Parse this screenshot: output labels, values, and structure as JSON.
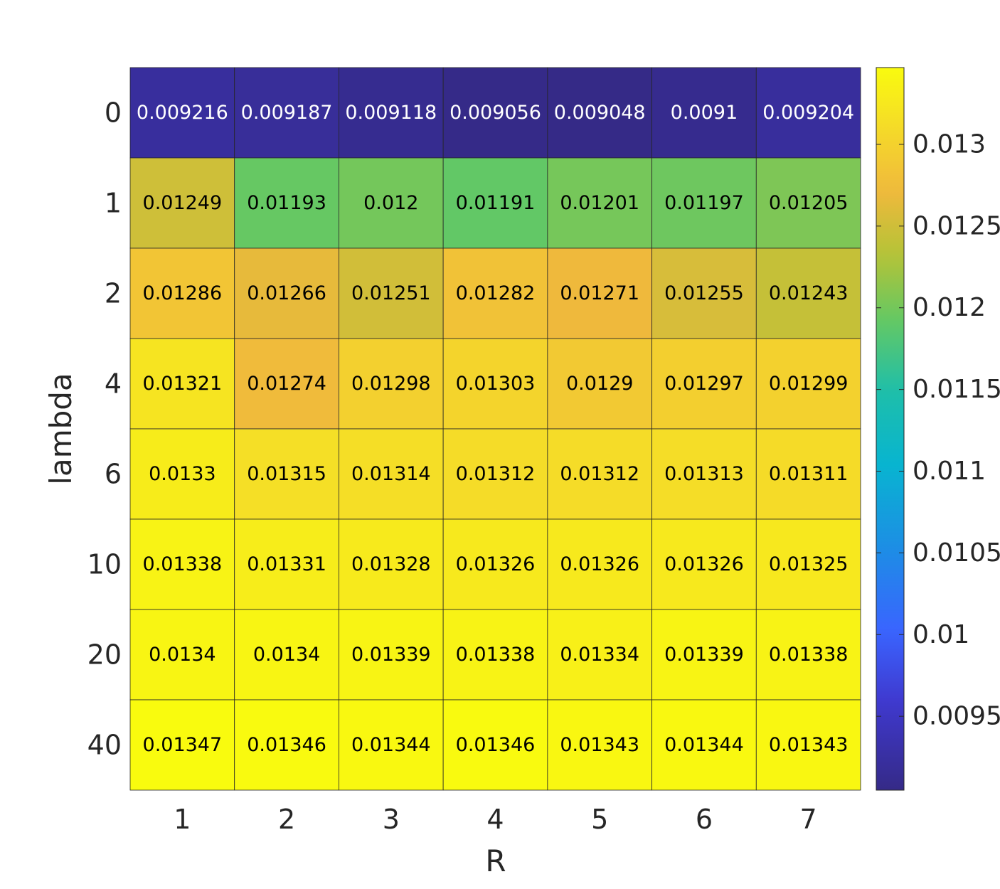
{
  "chart_data": {
    "type": "heatmap",
    "xlabel": "R",
    "ylabel": "lambda",
    "x_categories": [
      "1",
      "2",
      "3",
      "4",
      "5",
      "6",
      "7"
    ],
    "y_categories": [
      "0",
      "1",
      "2",
      "4",
      "6",
      "10",
      "20",
      "40"
    ],
    "cell_labels": [
      [
        "0.009216",
        "0.009187",
        "0.009118",
        "0.009056",
        "0.009048",
        "0.0091",
        "0.009204"
      ],
      [
        "0.01249",
        "0.01193",
        "0.012",
        "0.01191",
        "0.01201",
        "0.01197",
        "0.01205"
      ],
      [
        "0.01286",
        "0.01266",
        "0.01251",
        "0.01282",
        "0.01271",
        "0.01255",
        "0.01243"
      ],
      [
        "0.01321",
        "0.01274",
        "0.01298",
        "0.01303",
        "0.0129",
        "0.01297",
        "0.01299"
      ],
      [
        "0.0133",
        "0.01315",
        "0.01314",
        "0.01312",
        "0.01312",
        "0.01313",
        "0.01311"
      ],
      [
        "0.01338",
        "0.01331",
        "0.01328",
        "0.01326",
        "0.01326",
        "0.01326",
        "0.01325"
      ],
      [
        "0.0134",
        "0.0134",
        "0.01339",
        "0.01338",
        "0.01334",
        "0.01339",
        "0.01338"
      ],
      [
        "0.01347",
        "0.01346",
        "0.01344",
        "0.01346",
        "0.01343",
        "0.01344",
        "0.01343"
      ]
    ],
    "values": [
      [
        0.009216,
        0.009187,
        0.009118,
        0.009056,
        0.009048,
        0.0091,
        0.009204
      ],
      [
        0.01249,
        0.01193,
        0.012,
        0.01191,
        0.01201,
        0.01197,
        0.01205
      ],
      [
        0.01286,
        0.01266,
        0.01251,
        0.01282,
        0.01271,
        0.01255,
        0.01243
      ],
      [
        0.01321,
        0.01274,
        0.01298,
        0.01303,
        0.0129,
        0.01297,
        0.01299
      ],
      [
        0.0133,
        0.01315,
        0.01314,
        0.01312,
        0.01312,
        0.01313,
        0.01311
      ],
      [
        0.01338,
        0.01331,
        0.01328,
        0.01326,
        0.01326,
        0.01326,
        0.01325
      ],
      [
        0.0134,
        0.0134,
        0.01339,
        0.01338,
        0.01334,
        0.01339,
        0.01338
      ],
      [
        0.01347,
        0.01346,
        0.01344,
        0.01346,
        0.01343,
        0.01344,
        0.01343
      ]
    ],
    "colorbar": {
      "range": [
        0.009048,
        0.01347
      ],
      "ticks": [
        0.0095,
        0.01,
        0.0105,
        0.011,
        0.0115,
        0.012,
        0.0125,
        0.013
      ],
      "tick_labels": [
        "0.0095",
        "0.01",
        "0.0105",
        "0.011",
        "0.0115",
        "0.012",
        "0.0125",
        "0.013"
      ],
      "colormap": "parula",
      "placement": "right"
    },
    "grid": true
  }
}
